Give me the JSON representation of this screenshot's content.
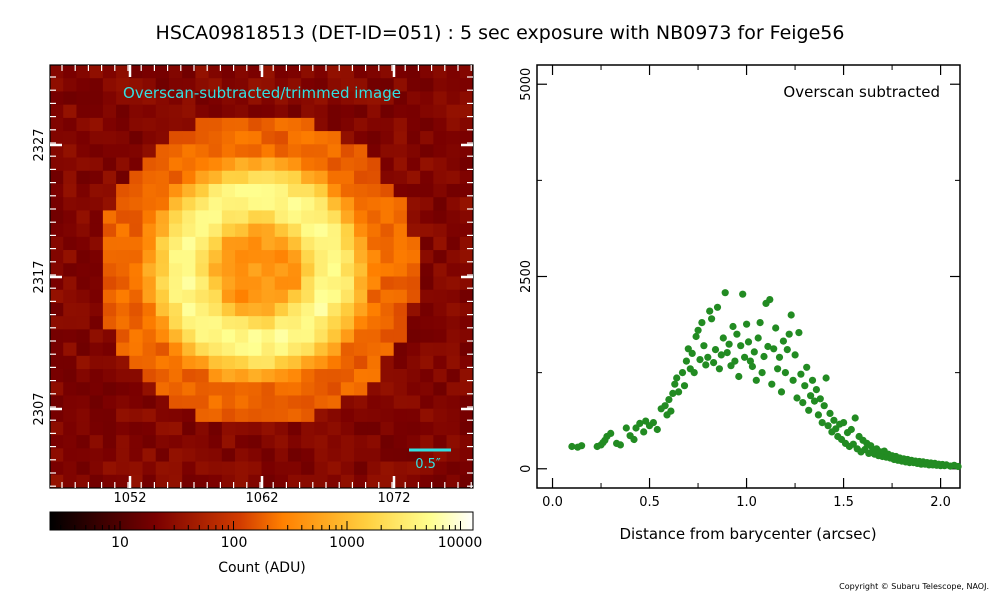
{
  "title": "HSCA09818513 (DET-ID=051) :  5 sec exposure with NB0973 for Feige56",
  "copyright": "Copyright © Subaru Telescope, NAOJ.",
  "image_panel": {
    "label": "Overscan-subtracted/trimmed image",
    "label_color": "#33e0e0",
    "scale_bar_label": "0.5″",
    "x_ticks": [
      "1052",
      "1062",
      "1072"
    ],
    "y_ticks": [
      "2327",
      "2317",
      "2307"
    ],
    "colorbar": {
      "tick_labels": [
        "10",
        "100",
        "1000",
        "10000"
      ],
      "label": "Count (ADU)"
    }
  },
  "chart_data": {
    "type": "scatter",
    "annotation": "Overscan subtracted",
    "xlabel": "Distance from barycenter (arcsec)",
    "ylabel": "",
    "xlim": [
      -0.08,
      2.1
    ],
    "ylim": [
      -250,
      5250
    ],
    "x_ticks": [
      0.0,
      0.5,
      1.0,
      1.5,
      2.0
    ],
    "x_tick_labels": [
      "0.0",
      "0.5",
      "1.0",
      "1.5",
      "2.0"
    ],
    "y_ticks": [
      0,
      2500,
      5000
    ],
    "y_tick_labels": [
      "0",
      "2500",
      "5000"
    ],
    "marker_color": "#228b22",
    "points": [
      [
        0.1,
        290
      ],
      [
        0.13,
        280
      ],
      [
        0.15,
        300
      ],
      [
        0.23,
        290
      ],
      [
        0.25,
        310
      ],
      [
        0.26,
        340
      ],
      [
        0.27,
        370
      ],
      [
        0.28,
        420
      ],
      [
        0.3,
        460
      ],
      [
        0.33,
        330
      ],
      [
        0.35,
        310
      ],
      [
        0.38,
        530
      ],
      [
        0.4,
        430
      ],
      [
        0.42,
        380
      ],
      [
        0.43,
        530
      ],
      [
        0.45,
        590
      ],
      [
        0.47,
        480
      ],
      [
        0.48,
        620
      ],
      [
        0.5,
        560
      ],
      [
        0.52,
        600
      ],
      [
        0.54,
        510
      ],
      [
        0.56,
        780
      ],
      [
        0.58,
        820
      ],
      [
        0.59,
        700
      ],
      [
        0.6,
        900
      ],
      [
        0.61,
        750
      ],
      [
        0.62,
        980
      ],
      [
        0.63,
        1100
      ],
      [
        0.64,
        1180
      ],
      [
        0.65,
        1000
      ],
      [
        0.67,
        1250
      ],
      [
        0.68,
        1080
      ],
      [
        0.69,
        1400
      ],
      [
        0.7,
        1560
      ],
      [
        0.71,
        1300
      ],
      [
        0.72,
        1500
      ],
      [
        0.73,
        1250
      ],
      [
        0.74,
        1720
      ],
      [
        0.75,
        1800
      ],
      [
        0.76,
        1420
      ],
      [
        0.77,
        1900
      ],
      [
        0.78,
        1600
      ],
      [
        0.79,
        1350
      ],
      [
        0.8,
        1450
      ],
      [
        0.81,
        2050
      ],
      [
        0.82,
        1950
      ],
      [
        0.83,
        1380
      ],
      [
        0.84,
        1550
      ],
      [
        0.85,
        2100
      ],
      [
        0.86,
        1300
      ],
      [
        0.87,
        1480
      ],
      [
        0.88,
        1700
      ],
      [
        0.89,
        2290
      ],
      [
        0.9,
        1510
      ],
      [
        0.91,
        1620
      ],
      [
        0.92,
        1340
      ],
      [
        0.93,
        1850
      ],
      [
        0.94,
        1400
      ],
      [
        0.95,
        1750
      ],
      [
        0.96,
        1200
      ],
      [
        0.97,
        1600
      ],
      [
        0.98,
        2270
      ],
      [
        0.99,
        1450
      ],
      [
        1.0,
        1880
      ],
      [
        1.01,
        1650
      ],
      [
        1.02,
        1400
      ],
      [
        1.03,
        1330
      ],
      [
        1.04,
        1520
      ],
      [
        1.05,
        1150
      ],
      [
        1.06,
        1700
      ],
      [
        1.07,
        1900
      ],
      [
        1.08,
        1250
      ],
      [
        1.09,
        1460
      ],
      [
        1.1,
        2150
      ],
      [
        1.11,
        1590
      ],
      [
        1.12,
        2200
      ],
      [
        1.13,
        1100
      ],
      [
        1.14,
        1560
      ],
      [
        1.15,
        1830
      ],
      [
        1.16,
        1300
      ],
      [
        1.17,
        1450
      ],
      [
        1.18,
        1000
      ],
      [
        1.19,
        1660
      ],
      [
        1.2,
        1250
      ],
      [
        1.21,
        1550
      ],
      [
        1.22,
        1750
      ],
      [
        1.23,
        2000
      ],
      [
        1.24,
        1150
      ],
      [
        1.25,
        1480
      ],
      [
        1.26,
        920
      ],
      [
        1.27,
        1770
      ],
      [
        1.28,
        1230
      ],
      [
        1.29,
        860
      ],
      [
        1.3,
        1080
      ],
      [
        1.31,
        1320
      ],
      [
        1.32,
        760
      ],
      [
        1.33,
        950
      ],
      [
        1.34,
        1150
      ],
      [
        1.35,
        880
      ],
      [
        1.36,
        1030
      ],
      [
        1.37,
        700
      ],
      [
        1.38,
        910
      ],
      [
        1.39,
        600
      ],
      [
        1.4,
        820
      ],
      [
        1.41,
        1180
      ],
      [
        1.42,
        560
      ],
      [
        1.43,
        720
      ],
      [
        1.44,
        480
      ],
      [
        1.45,
        630
      ],
      [
        1.46,
        520
      ],
      [
        1.47,
        420
      ],
      [
        1.48,
        580
      ],
      [
        1.49,
        380
      ],
      [
        1.5,
        600
      ],
      [
        1.51,
        330
      ],
      [
        1.52,
        470
      ],
      [
        1.53,
        290
      ],
      [
        1.54,
        510
      ],
      [
        1.55,
        320
      ],
      [
        1.56,
        660
      ],
      [
        1.57,
        260
      ],
      [
        1.58,
        420
      ],
      [
        1.59,
        220
      ],
      [
        1.6,
        370
      ],
      [
        1.61,
        250
      ],
      [
        1.62,
        330
      ],
      [
        1.63,
        200
      ],
      [
        1.64,
        300
      ],
      [
        1.65,
        240
      ],
      [
        1.66,
        190
      ],
      [
        1.67,
        260
      ],
      [
        1.68,
        170
      ],
      [
        1.69,
        220
      ],
      [
        1.7,
        160
      ],
      [
        1.71,
        230
      ],
      [
        1.72,
        150
      ],
      [
        1.73,
        190
      ],
      [
        1.74,
        140
      ],
      [
        1.75,
        170
      ],
      [
        1.76,
        120
      ],
      [
        1.77,
        160
      ],
      [
        1.78,
        110
      ],
      [
        1.79,
        140
      ],
      [
        1.8,
        100
      ],
      [
        1.81,
        130
      ],
      [
        1.82,
        90
      ],
      [
        1.83,
        120
      ],
      [
        1.84,
        80
      ],
      [
        1.85,
        110
      ],
      [
        1.86,
        80
      ],
      [
        1.87,
        100
      ],
      [
        1.88,
        70
      ],
      [
        1.89,
        95
      ],
      [
        1.9,
        60
      ],
      [
        1.91,
        90
      ],
      [
        1.92,
        60
      ],
      [
        1.93,
        80
      ],
      [
        1.94,
        50
      ],
      [
        1.95,
        75
      ],
      [
        1.96,
        50
      ],
      [
        1.97,
        70
      ],
      [
        1.98,
        45
      ],
      [
        1.99,
        60
      ],
      [
        2.0,
        40
      ],
      [
        2.01,
        55
      ],
      [
        2.02,
        40
      ],
      [
        2.03,
        50
      ],
      [
        2.05,
        35
      ],
      [
        2.07,
        45
      ],
      [
        2.09,
        30
      ]
    ]
  }
}
